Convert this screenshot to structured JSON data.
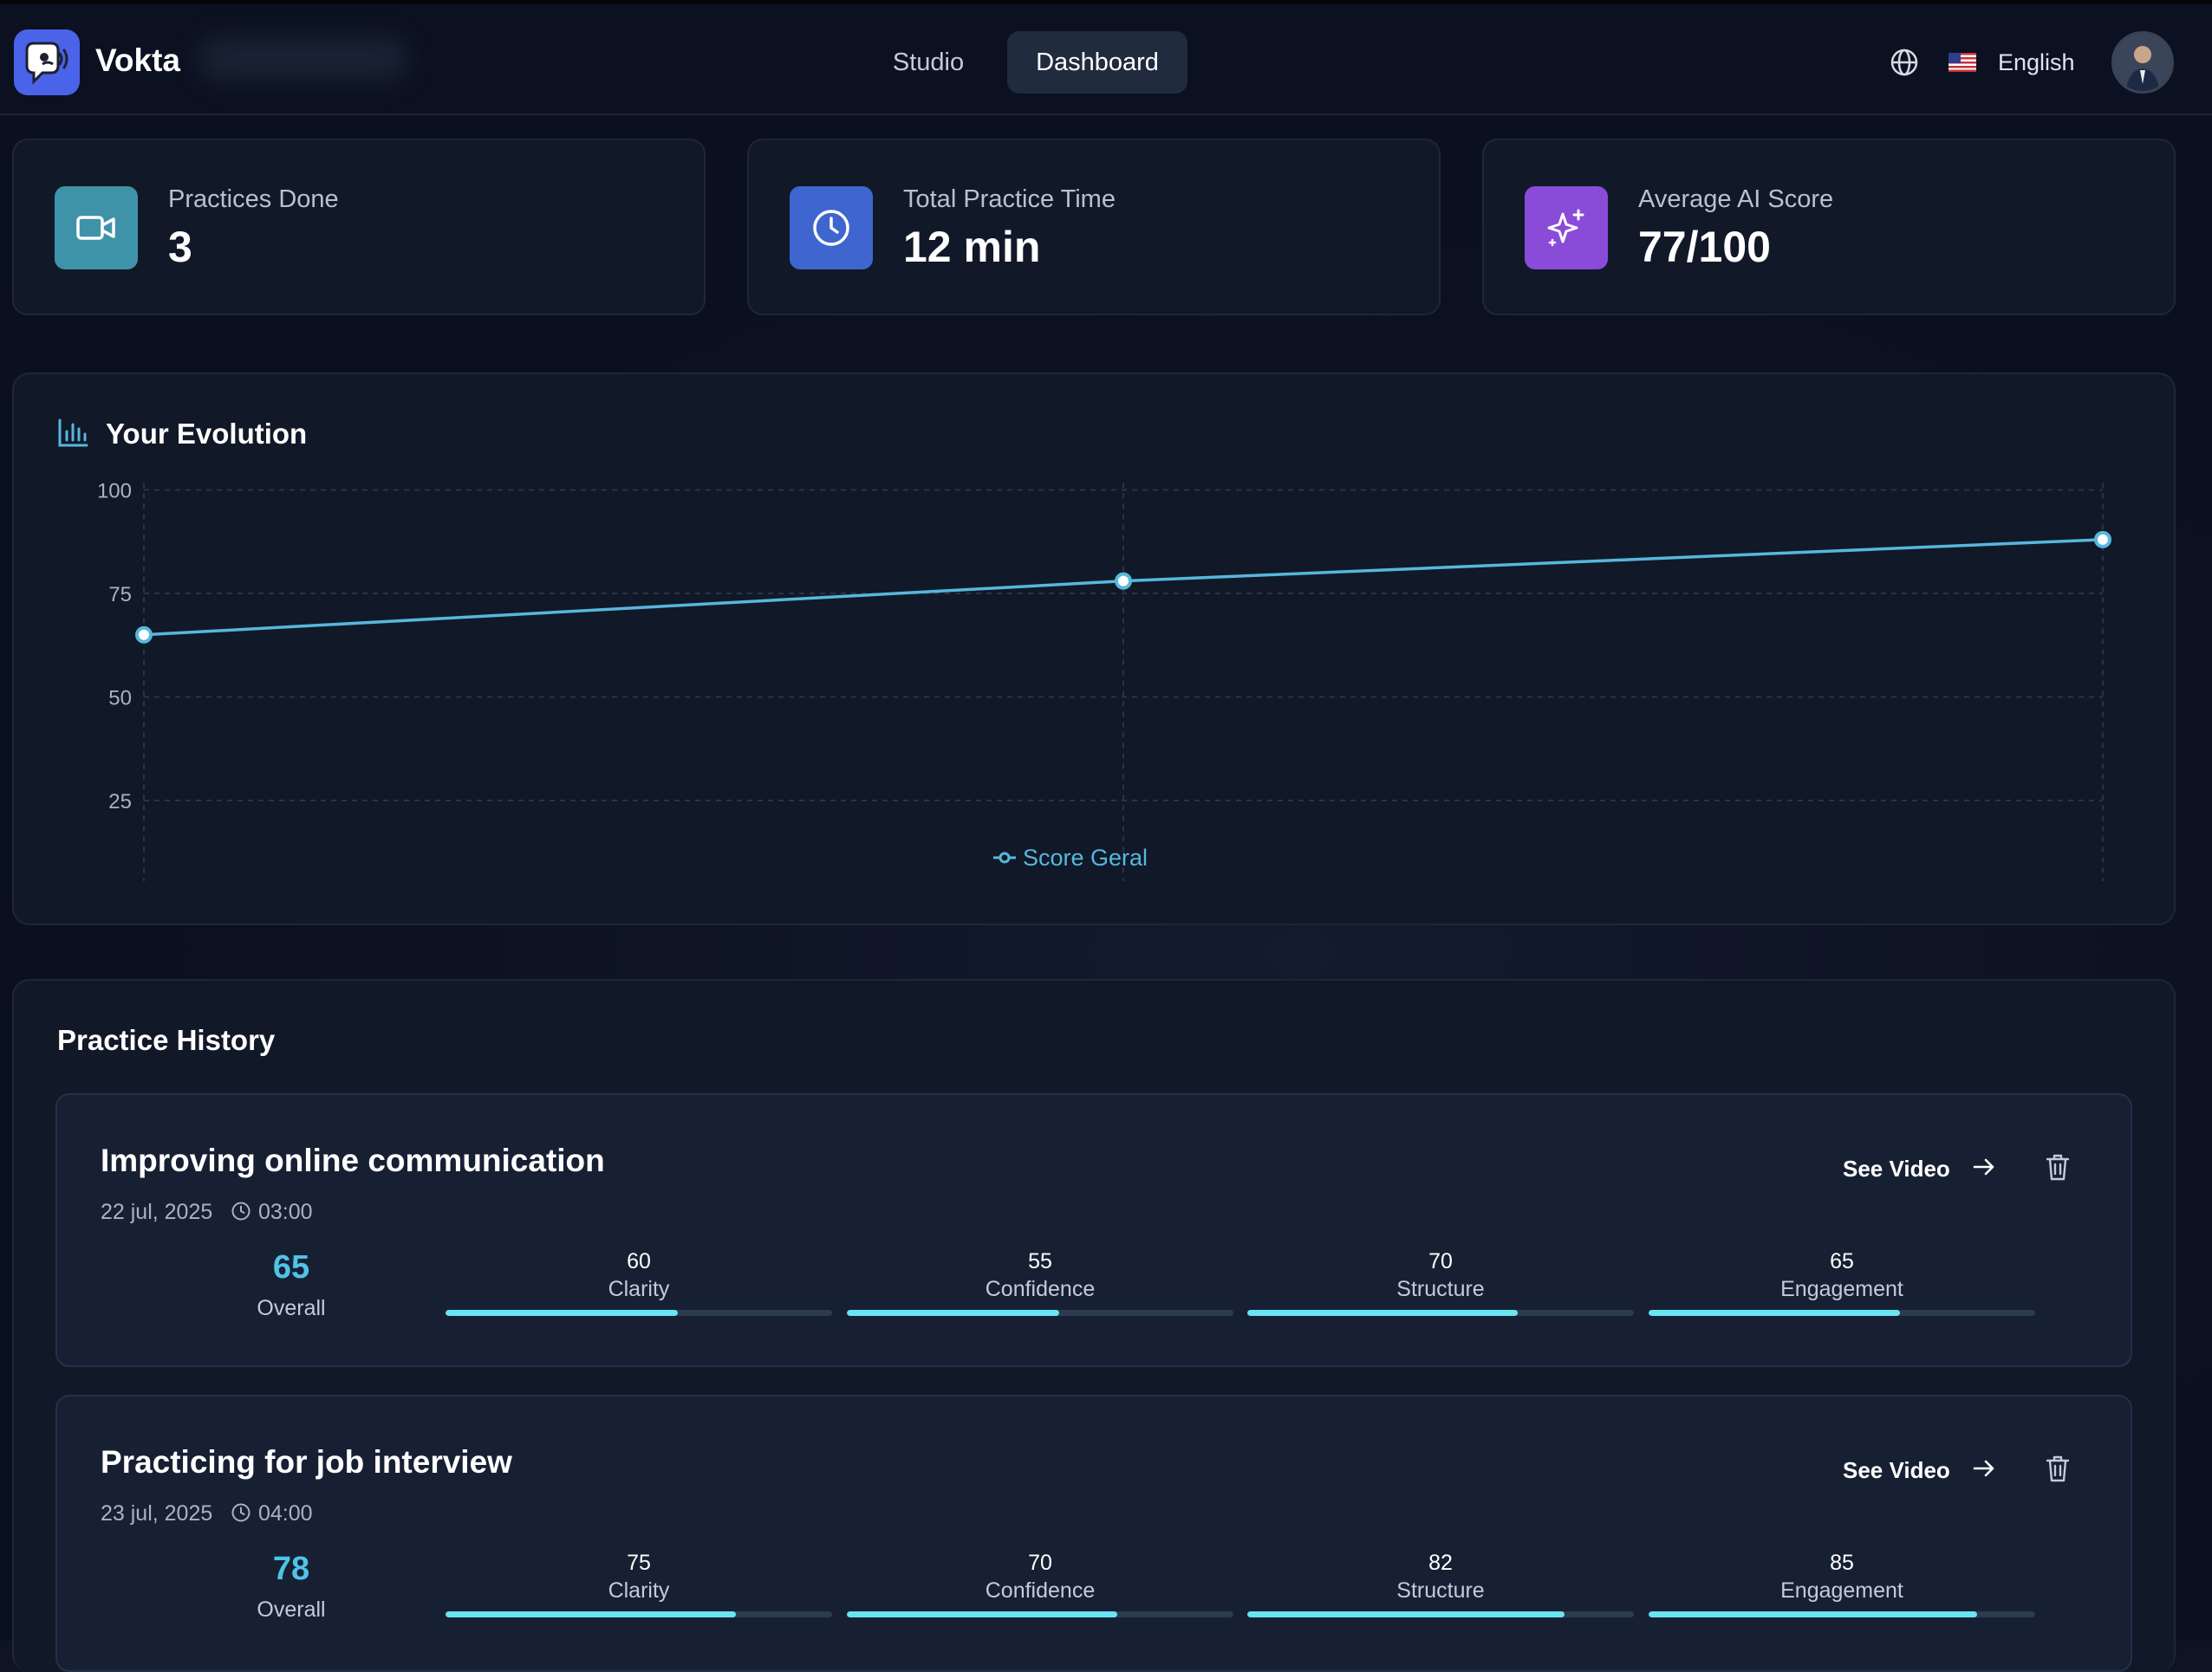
{
  "header": {
    "brand": "Vokta",
    "nav": [
      {
        "label": "Studio",
        "active": false
      },
      {
        "label": "Dashboard",
        "active": true
      }
    ],
    "language": "English",
    "icons": [
      "globe-icon",
      "us-flag-icon",
      "avatar"
    ]
  },
  "stats": [
    {
      "label": "Practices Done",
      "value": "3",
      "icon": "video-camera-icon",
      "color": "#3f93a8"
    },
    {
      "label": "Total Practice Time",
      "value": "12 min",
      "icon": "clock-icon",
      "color": "#3f66cf"
    },
    {
      "label": "Average AI Score",
      "value": "77/100",
      "icon": "sparkles-icon",
      "color": "#8a4bd9"
    }
  ],
  "evolution": {
    "title": "Your Evolution",
    "icon": "bar-chart-icon"
  },
  "chart_data": {
    "type": "line",
    "x": [
      "",
      "",
      ""
    ],
    "series": [
      {
        "name": "Score Geral",
        "values": [
          65,
          78,
          88
        ]
      }
    ],
    "yticks": [
      100,
      75,
      50,
      25
    ],
    "ylim": [
      0,
      100
    ],
    "grid": true,
    "legend_position": "bottom-center",
    "line_color": "#56b8dc"
  },
  "history": {
    "title": "Practice History",
    "see_video_label": "See Video",
    "overall_label": "Overall",
    "items": [
      {
        "title": "Improving online communication",
        "date": "22 jul, 2025",
        "duration": "03:00",
        "overall": "65",
        "metrics": [
          {
            "label": "Clarity",
            "value": "60",
            "pct": 60
          },
          {
            "label": "Confidence",
            "value": "55",
            "pct": 55
          },
          {
            "label": "Structure",
            "value": "70",
            "pct": 70
          },
          {
            "label": "Engagement",
            "value": "65",
            "pct": 65
          }
        ]
      },
      {
        "title": "Practicing for job interview",
        "date": "23 jul, 2025",
        "duration": "04:00",
        "overall": "78",
        "metrics": [
          {
            "label": "Clarity",
            "value": "75",
            "pct": 75
          },
          {
            "label": "Confidence",
            "value": "70",
            "pct": 70
          },
          {
            "label": "Structure",
            "value": "82",
            "pct": 82
          },
          {
            "label": "Engagement",
            "value": "85",
            "pct": 85
          }
        ]
      }
    ]
  }
}
